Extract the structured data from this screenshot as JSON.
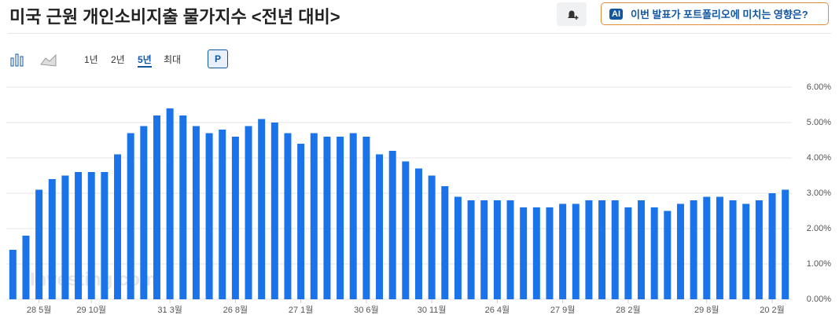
{
  "header": {
    "title": "미국 근원 개인소비지출 물가지수 <전년 대비>",
    "ai_label": "AI",
    "ai_button": "이번 발표가 포트폴리오에 미치는 영향은?"
  },
  "toolbar": {
    "ranges": [
      "1년",
      "2년",
      "5년",
      "최대"
    ],
    "active_range": 2,
    "p_button": "P"
  },
  "chart_data": {
    "type": "bar",
    "watermark": "Investing.com",
    "color": "#1a73e8",
    "grid": true,
    "categories": [
      null,
      null,
      "28 5월",
      null,
      null,
      null,
      "29 10월",
      null,
      null,
      null,
      null,
      null,
      "31 3월",
      null,
      null,
      null,
      null,
      "26 8월",
      null,
      null,
      null,
      null,
      "27 1월",
      null,
      null,
      null,
      null,
      "30 6월",
      null,
      null,
      null,
      null,
      "30 11월",
      null,
      null,
      null,
      null,
      "26 4월",
      null,
      null,
      null,
      null,
      "27 9월",
      null,
      null,
      null,
      null,
      "28 2월",
      null,
      null,
      null,
      null,
      null,
      "29 8월",
      null,
      null,
      null,
      null,
      "20 2월",
      null
    ],
    "values": [
      1.4,
      1.8,
      3.1,
      3.4,
      3.5,
      3.6,
      3.6,
      3.6,
      4.1,
      4.7,
      4.9,
      5.2,
      5.4,
      5.2,
      4.9,
      4.7,
      4.8,
      4.6,
      4.9,
      5.1,
      5.0,
      4.7,
      4.4,
      4.7,
      4.6,
      4.6,
      4.7,
      4.6,
      4.1,
      4.2,
      3.9,
      3.7,
      3.5,
      3.2,
      2.9,
      2.8,
      2.8,
      2.8,
      2.8,
      2.6,
      2.6,
      2.6,
      2.7,
      2.7,
      2.8,
      2.8,
      2.8,
      2.6,
      2.8,
      2.6,
      2.5,
      2.7,
      2.8,
      2.9,
      2.9,
      2.8,
      2.7,
      2.8,
      3.0,
      3.1
    ],
    "ylim": [
      0,
      6
    ],
    "yticks": [
      {
        "value": 0,
        "label": "0.00%"
      },
      {
        "value": 1,
        "label": "1.00%"
      },
      {
        "value": 2,
        "label": "2.00%"
      },
      {
        "value": 3,
        "label": "3.00%"
      },
      {
        "value": 4,
        "label": "4.00%"
      },
      {
        "value": 5,
        "label": "5.00%"
      },
      {
        "value": 6,
        "label": "6.00%"
      }
    ]
  }
}
